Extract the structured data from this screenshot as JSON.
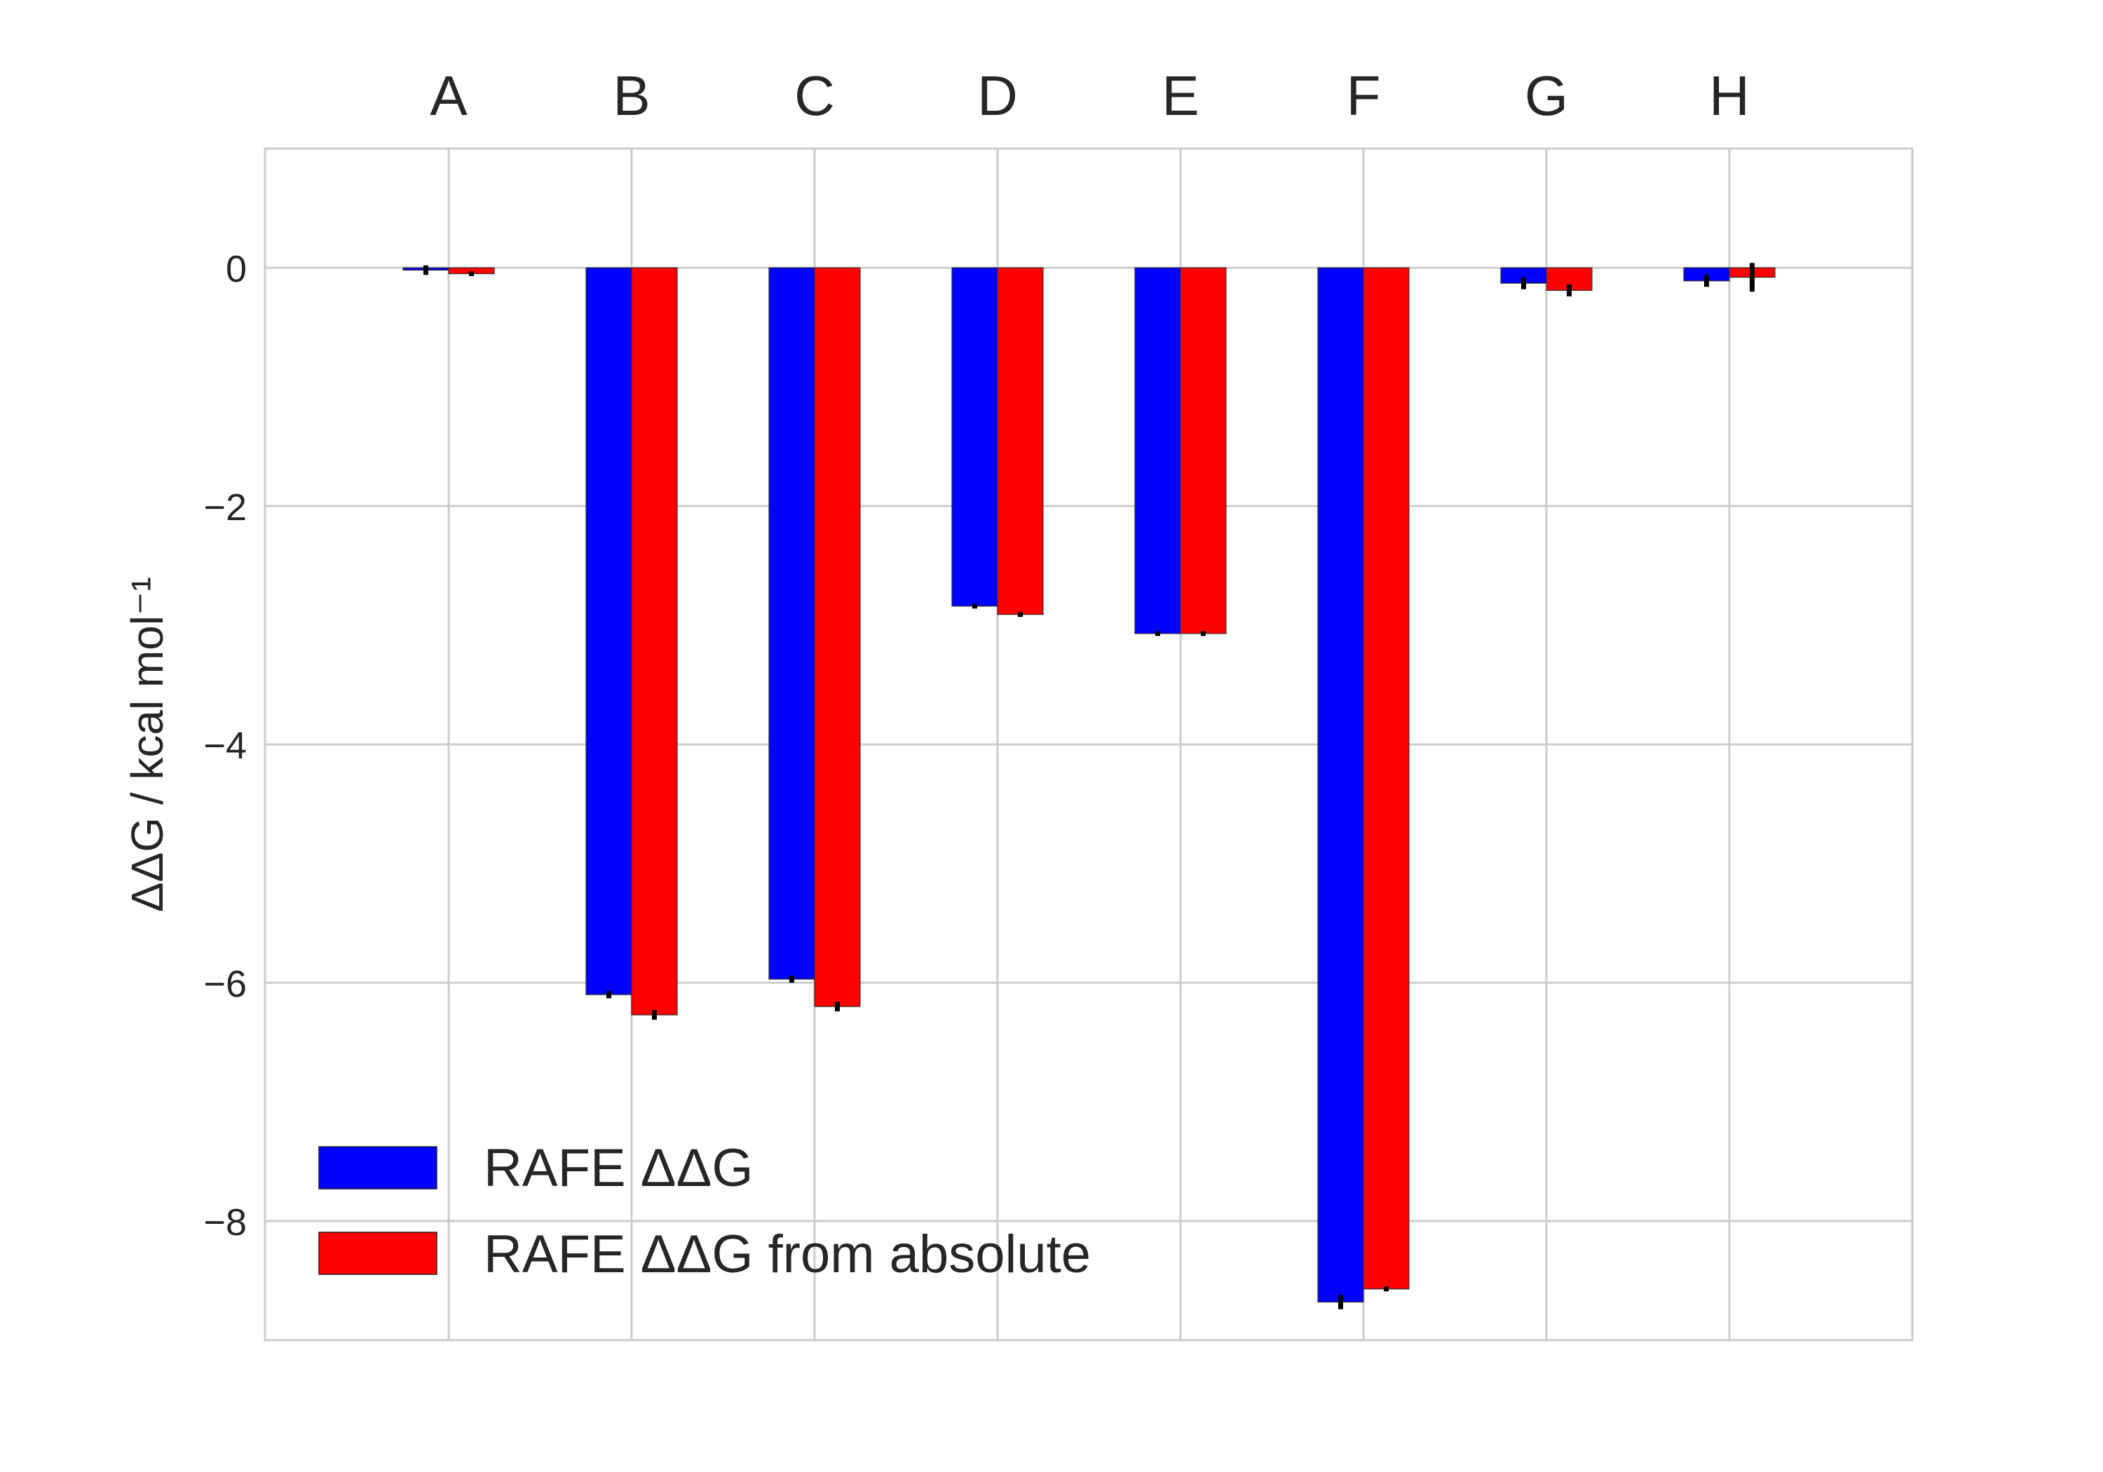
{
  "chart_data": {
    "type": "bar",
    "categories": [
      "A",
      "B",
      "C",
      "D",
      "E",
      "F",
      "G",
      "H"
    ],
    "series": [
      {
        "name": "RAFE ΔΔG",
        "color": "#0000ff",
        "values": [
          -0.02,
          -6.1,
          -5.97,
          -2.84,
          -3.07,
          -8.68,
          -0.13,
          -0.11
        ],
        "errors": [
          0.04,
          0.03,
          0.03,
          0.02,
          0.02,
          0.06,
          0.05,
          0.05
        ]
      },
      {
        "name": "RAFE ΔΔG from absolute",
        "color": "#ff0000",
        "values": [
          -0.05,
          -6.27,
          -6.2,
          -2.91,
          -3.07,
          -8.57,
          -0.19,
          -0.08
        ],
        "errors": [
          0.02,
          0.04,
          0.04,
          0.02,
          0.02,
          0.02,
          0.05,
          0.12
        ]
      }
    ],
    "ylabel": "ΔΔG / kcal mol⁻¹",
    "ylim": [
      -9,
      1
    ],
    "yticks": [
      0,
      -2,
      -4,
      -6,
      -8
    ],
    "ytick_labels": [
      "0",
      "−2",
      "−4",
      "−6",
      "−8"
    ],
    "category_axis_position": "top",
    "grid": true,
    "legend_placement": "lower-left"
  }
}
